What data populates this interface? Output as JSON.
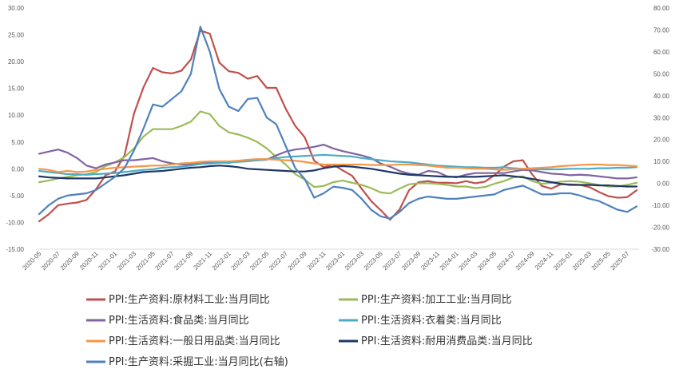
{
  "chart_data": {
    "type": "line",
    "title": "",
    "xlabel": "",
    "ylabel": "",
    "y2label": "",
    "grid": false,
    "legend_position": "bottom",
    "ylim": [
      -15,
      30
    ],
    "y2lim": [
      -30,
      80
    ],
    "left_ticks": [
      "-15.00",
      "-10.00",
      "-5.00",
      "0.00",
      "5.00",
      "10.00",
      "15.00",
      "20.00",
      "25.00",
      "30.00"
    ],
    "right_ticks": [
      "-30.00",
      "-20.00",
      "-10.00",
      "0.00",
      "10.00",
      "20.00",
      "30.00",
      "40.00",
      "50.00",
      "60.00",
      "70.00",
      "80.00"
    ],
    "x": [
      "2020-05",
      "2020-06",
      "2020-07",
      "2020-08",
      "2020-09",
      "2020-10",
      "2020-11",
      "2020-12",
      "2021-01",
      "2021-02",
      "2021-03",
      "2021-04",
      "2021-05",
      "2021-06",
      "2021-07",
      "2021-08",
      "2021-09",
      "2021-10",
      "2021-11",
      "2021-12",
      "2022-01",
      "2022-02",
      "2022-03",
      "2022-04",
      "2022-05",
      "2022-06",
      "2022-07",
      "2022-08",
      "2022-09",
      "2022-10",
      "2022-11",
      "2022-12",
      "2023-01",
      "2023-02",
      "2023-03",
      "2023-04",
      "2023-05",
      "2023-06",
      "2023-07",
      "2023-08",
      "2023-09",
      "2023-10",
      "2023-11",
      "2023-12",
      "2024-01",
      "2024-02",
      "2024-03",
      "2024-04",
      "2024-05",
      "2024-06",
      "2024-07",
      "2024-08",
      "2024-09",
      "2024-10",
      "2024-11",
      "2024-12",
      "2025-01",
      "2025-02",
      "2025-03",
      "2025-04",
      "2025-05",
      "2025-06",
      "2025-07",
      "2025-08"
    ],
    "x_tick_labels": [
      "2020-05",
      "2020-07",
      "2020-09",
      "2020-11",
      "2021-01",
      "2021-03",
      "2021-05",
      "2021-07",
      "2021-09",
      "2021-11",
      "2022-01",
      "2022-03",
      "2022-05",
      "2022-07",
      "2022-09",
      "2022-11",
      "2023-01",
      "2023-03",
      "2023-05",
      "2023-07",
      "2023-09",
      "2023-11",
      "2024-01",
      "2024-03",
      "2024-05",
      "2024-07",
      "2024-09",
      "2024-11",
      "2025-01",
      "2025-03",
      "2025-05",
      "2025-07"
    ],
    "series": [
      {
        "name": "PPI:生产资料:原材料工业:当月同比",
        "color": "#c0504d",
        "axis": "left",
        "values": [
          -9.8,
          -8.5,
          -6.8,
          -6.5,
          -6.3,
          -5.8,
          -3.8,
          -1.2,
          -0.5,
          2.5,
          10.3,
          15.2,
          18.8,
          18.0,
          17.8,
          18.3,
          20.4,
          25.8,
          25.2,
          19.8,
          18.2,
          17.9,
          16.8,
          17.3,
          15.1,
          15.1,
          11.2,
          8.0,
          5.9,
          1.5,
          0.3,
          0.8,
          -0.3,
          -1.3,
          -3.7,
          -6.0,
          -7.7,
          -9.5,
          -7.6,
          -4.0,
          -2.5,
          -2.3,
          -2.6,
          -2.6,
          -2.7,
          -2.3,
          -2.7,
          -2.4,
          -1.2,
          0.4,
          1.4,
          1.6,
          -1.1,
          -3.2,
          -3.7,
          -2.9,
          -2.9,
          -3.0,
          -3.4,
          -4.3,
          -5.1,
          -5.4,
          -5.3,
          -4.0
        ]
      },
      {
        "name": "PPI:生产资料:加工工业:当月同比",
        "color": "#9bbb59",
        "axis": "left",
        "values": [
          -2.5,
          -2.2,
          -1.8,
          -1.5,
          -1.2,
          -1.0,
          -0.6,
          0.5,
          1.2,
          2.2,
          3.8,
          6.0,
          7.4,
          7.4,
          7.4,
          8.0,
          8.8,
          10.7,
          10.2,
          8.0,
          6.8,
          6.4,
          5.8,
          5.0,
          3.8,
          2.2,
          0.8,
          -1.0,
          -2.0,
          -3.4,
          -3.2,
          -2.5,
          -2.2,
          -2.6,
          -3.0,
          -3.6,
          -4.4,
          -4.6,
          -3.7,
          -2.9,
          -2.7,
          -2.7,
          -2.8,
          -3.0,
          -3.3,
          -3.3,
          -3.6,
          -3.4,
          -2.8,
          -2.3,
          -1.6,
          -1.4,
          -2.3,
          -2.8,
          -2.6,
          -2.4,
          -2.3,
          -2.4,
          -2.7,
          -3.0,
          -3.3,
          -3.3,
          -3.0,
          -2.6
        ]
      },
      {
        "name": "PPI:生活资料:食品类:当月同比",
        "color": "#8064a2",
        "axis": "left",
        "values": [
          2.8,
          3.2,
          3.6,
          3.0,
          2.0,
          0.6,
          0.1,
          0.8,
          1.2,
          1.6,
          1.6,
          1.8,
          2.0,
          1.4,
          1.0,
          0.8,
          0.8,
          1.0,
          1.3,
          1.2,
          1.1,
          1.5,
          1.5,
          1.6,
          1.7,
          2.5,
          3.2,
          3.6,
          3.8,
          4.1,
          4.5,
          3.8,
          3.3,
          2.9,
          2.5,
          2.0,
          1.0,
          0.4,
          -0.4,
          -0.9,
          -1.1,
          -0.4,
          -0.6,
          -1.4,
          -1.6,
          -1.1,
          -0.8,
          -0.8,
          -0.8,
          -0.8,
          -0.5,
          -0.2,
          -0.3,
          -0.6,
          -0.9,
          -1.0,
          -1.2,
          -1.1,
          -1.2,
          -1.4,
          -1.6,
          -1.8,
          -1.8,
          -1.6
        ]
      },
      {
        "name": "PPI:生活资料:衣着类:当月同比",
        "color": "#4bacc6",
        "axis": "left",
        "values": [
          -0.4,
          -0.6,
          -0.8,
          -1.0,
          -1.0,
          -1.1,
          -1.0,
          -0.9,
          -0.8,
          -0.6,
          -0.4,
          -0.2,
          -0.1,
          0.2,
          0.3,
          0.4,
          0.6,
          0.9,
          1.0,
          1.1,
          1.2,
          1.3,
          1.4,
          1.6,
          1.8,
          2.0,
          2.2,
          2.3,
          2.4,
          2.5,
          2.6,
          2.5,
          2.4,
          2.3,
          2.0,
          1.8,
          1.6,
          1.4,
          1.3,
          1.2,
          1.0,
          0.8,
          0.6,
          0.5,
          0.4,
          0.3,
          0.3,
          0.2,
          0.2,
          0.3,
          0.1,
          0.0,
          -0.1,
          -0.1,
          -0.1,
          -0.1,
          0.0,
          0.0,
          0.0,
          0.1,
          0.1,
          0.2,
          0.2,
          0.3
        ]
      },
      {
        "name": "PPI:生活资料:一般日用品类:当月同比",
        "color": "#f79646",
        "axis": "left",
        "values": [
          0.0,
          -0.2,
          -0.6,
          -0.4,
          -0.6,
          -0.5,
          -0.2,
          0.0,
          0.2,
          0.3,
          0.4,
          0.5,
          0.6,
          0.6,
          0.8,
          1.0,
          1.1,
          1.3,
          1.4,
          1.4,
          1.4,
          1.5,
          1.7,
          1.8,
          1.8,
          1.7,
          1.6,
          1.5,
          1.3,
          1.0,
          0.8,
          0.8,
          0.8,
          0.8,
          0.8,
          0.7,
          0.7,
          0.7,
          0.8,
          0.8,
          0.7,
          0.6,
          0.4,
          0.2,
          0.2,
          0.1,
          0.0,
          0.0,
          -0.1,
          -0.2,
          -0.1,
          0.0,
          0.1,
          0.2,
          0.3,
          0.5,
          0.6,
          0.7,
          0.8,
          0.8,
          0.7,
          0.7,
          0.6,
          0.5
        ]
      },
      {
        "name": "PPI:生活资料:耐用消费品类:当月同比",
        "color": "#1f3864",
        "axis": "left",
        "values": [
          -1.4,
          -1.6,
          -1.7,
          -1.8,
          -1.8,
          -1.8,
          -1.8,
          -1.6,
          -1.4,
          -1.2,
          -0.9,
          -0.6,
          -0.5,
          -0.4,
          -0.2,
          0.0,
          0.2,
          0.3,
          0.5,
          0.6,
          0.5,
          0.3,
          0.0,
          -0.1,
          -0.2,
          -0.3,
          -0.4,
          -0.5,
          -0.5,
          -0.3,
          0.1,
          0.4,
          0.5,
          0.4,
          0.2,
          0.0,
          -0.3,
          -0.6,
          -0.9,
          -1.1,
          -1.2,
          -1.3,
          -1.4,
          -1.5,
          -1.5,
          -1.5,
          -1.5,
          -1.4,
          -1.3,
          -1.2,
          -1.4,
          -1.6,
          -1.9,
          -2.2,
          -2.5,
          -2.8,
          -3.0,
          -3.0,
          -3.0,
          -3.1,
          -3.1,
          -3.2,
          -3.3,
          -3.3
        ]
      },
      {
        "name": "PPI:生产资料:采掘工业:当月同比(右轴)",
        "color": "#4f81bd",
        "axis": "right",
        "values": [
          -14.0,
          -10.0,
          -7.0,
          -5.5,
          -5.0,
          -4.5,
          -3.0,
          0.0,
          3.0,
          7.0,
          15.0,
          25.0,
          36.0,
          35.0,
          38.5,
          42.0,
          50.0,
          71.5,
          60.0,
          43.0,
          35.0,
          33.0,
          38.5,
          39.0,
          30.0,
          27.0,
          17.0,
          7.0,
          2.0,
          -6.5,
          -4.5,
          -1.5,
          -2.0,
          -3.0,
          -7.0,
          -12.0,
          -15.0,
          -16.0,
          -13.0,
          -9.0,
          -7.0,
          -6.0,
          -6.5,
          -7.0,
          -7.0,
          -6.5,
          -6.0,
          -5.5,
          -5.0,
          -3.0,
          -2.0,
          -1.0,
          -3.0,
          -5.0,
          -5.0,
          -4.5,
          -4.5,
          -5.5,
          -7.0,
          -8.0,
          -10.0,
          -12.0,
          -13.0,
          -10.5
        ]
      }
    ]
  }
}
